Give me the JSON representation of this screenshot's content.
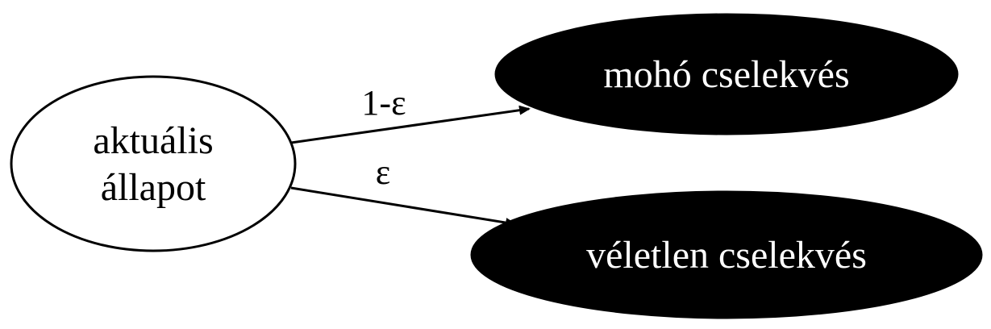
{
  "diagram": {
    "nodes": {
      "current_state": {
        "line1": "aktuális",
        "line2": "állapot"
      },
      "greedy_action": {
        "label": "mohó cselekvés"
      },
      "random_action": {
        "label": "véletlen cselekvés"
      }
    },
    "edges": {
      "to_greedy": {
        "label": "1-ε"
      },
      "to_random": {
        "label": "ε"
      }
    },
    "colors": {
      "start_fill": "#ffffff",
      "action_fill": "#000000",
      "stroke": "#000000",
      "action_text": "#ffffff",
      "start_text": "#000000"
    }
  }
}
